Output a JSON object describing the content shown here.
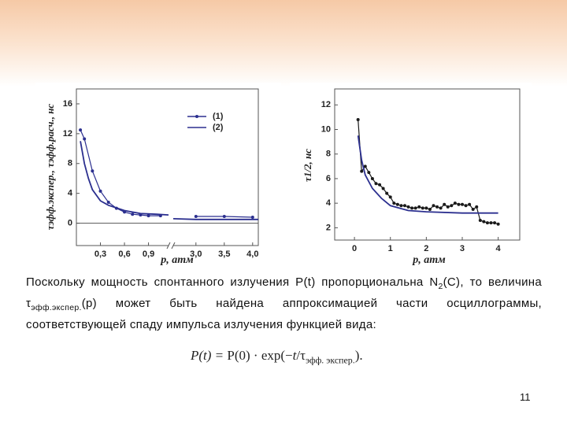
{
  "chart_data": [
    {
      "type": "line",
      "ylabel": "τэфф.экспер., τэфф.расч., нс",
      "xlabel": "p, атм",
      "xlim": [
        0,
        4.1
      ],
      "x_break": [
        1.15,
        2.6
      ],
      "ylim": [
        -3,
        18
      ],
      "xticks": [
        {
          "value": 0.3,
          "label": "0,3"
        },
        {
          "value": 0.6,
          "label": "0,6"
        },
        {
          "value": 0.9,
          "label": "0,9"
        },
        {
          "value": 3.0,
          "label": "3,0"
        },
        {
          "value": 3.5,
          "label": "3,5"
        },
        {
          "value": 4.0,
          "label": "4,0"
        }
      ],
      "yticks": [
        0,
        4,
        8,
        12,
        16
      ],
      "series": [
        {
          "name": "(1)",
          "color": "#2b2f8f",
          "markers": true,
          "x": [
            0.05,
            0.1,
            0.2,
            0.3,
            0.4,
            0.5,
            0.6,
            0.7,
            0.8,
            0.9,
            1.05,
            3.0,
            3.5,
            4.0
          ],
          "values": [
            12.5,
            11.3,
            7,
            4.3,
            2.8,
            2,
            1.5,
            1.2,
            1.1,
            1.0,
            1.0,
            0.9,
            0.9,
            0.8
          ]
        },
        {
          "name": "(2)",
          "color": "#2b2f8f",
          "markers": false,
          "x": [
            0.05,
            0.1,
            0.15,
            0.2,
            0.3,
            0.4,
            0.6,
            0.8,
            1.0,
            1.15,
            2.6,
            3.0,
            3.5,
            4.1
          ],
          "values": [
            11,
            8,
            6,
            4.5,
            3,
            2.4,
            1.7,
            1.3,
            1.2,
            1.1,
            0.6,
            0.5,
            0.5,
            0.5
          ]
        }
      ]
    },
    {
      "type": "line",
      "ylabel": "τ1/2, нс",
      "xlabel": "p, атм",
      "xlim": [
        -0.55,
        4.6
      ],
      "ylim": [
        1,
        13.3
      ],
      "xticks": [
        0,
        1,
        2,
        3,
        4
      ],
      "yticks": [
        2,
        4,
        6,
        8,
        10,
        12
      ],
      "series": [
        {
          "color": "#1a1a1a",
          "markers": true,
          "x": [
            0.1,
            0.2,
            0.3,
            0.4,
            0.5,
            0.6,
            0.7,
            0.8,
            0.9,
            1.0,
            1.1,
            1.2,
            1.3,
            1.4,
            1.5,
            1.6,
            1.7,
            1.8,
            1.9,
            2.0,
            2.1,
            2.2,
            2.3,
            2.4,
            2.5,
            2.6,
            2.7,
            2.8,
            2.9,
            3.0,
            3.1,
            3.2,
            3.3,
            3.4,
            3.5,
            3.6,
            3.7,
            3.8,
            3.9,
            4.0
          ],
          "values": [
            10.8,
            6.6,
            7,
            6.5,
            6,
            5.6,
            5.5,
            5.2,
            4.8,
            4.5,
            4,
            3.9,
            3.8,
            3.8,
            3.7,
            3.6,
            3.6,
            3.7,
            3.6,
            3.6,
            3.5,
            3.8,
            3.7,
            3.6,
            3.9,
            3.7,
            3.8,
            4,
            3.9,
            3.9,
            3.8,
            3.9,
            3.5,
            3.7,
            2.6,
            2.5,
            2.4,
            2.4,
            2.4,
            2.3
          ]
        },
        {
          "color": "#2b2f8f",
          "markers": false,
          "x": [
            0.1,
            0.2,
            0.3,
            0.5,
            0.75,
            1.0,
            1.5,
            2.0,
            3.0,
            4.0
          ],
          "values": [
            9.5,
            7.5,
            6.3,
            5.2,
            4.4,
            3.8,
            3.4,
            3.3,
            3.2,
            3.2
          ]
        }
      ]
    }
  ],
  "slide": {
    "paragraph": [
      "Поскольку мощность спонтанного излучения P(t) пропорциональна N",
      "2",
      "(С), то величина τ",
      "эфф.экспер.",
      "(p) может быть найдена аппроксимацией части осциллограммы, соответствующей спаду импульса излучения функцией вида:"
    ],
    "formula": [
      "P(t) = ",
      "P(0) · exp(−",
      "t",
      "/τ",
      "эфф. экспер.",
      ")."
    ],
    "page_number": "11"
  }
}
